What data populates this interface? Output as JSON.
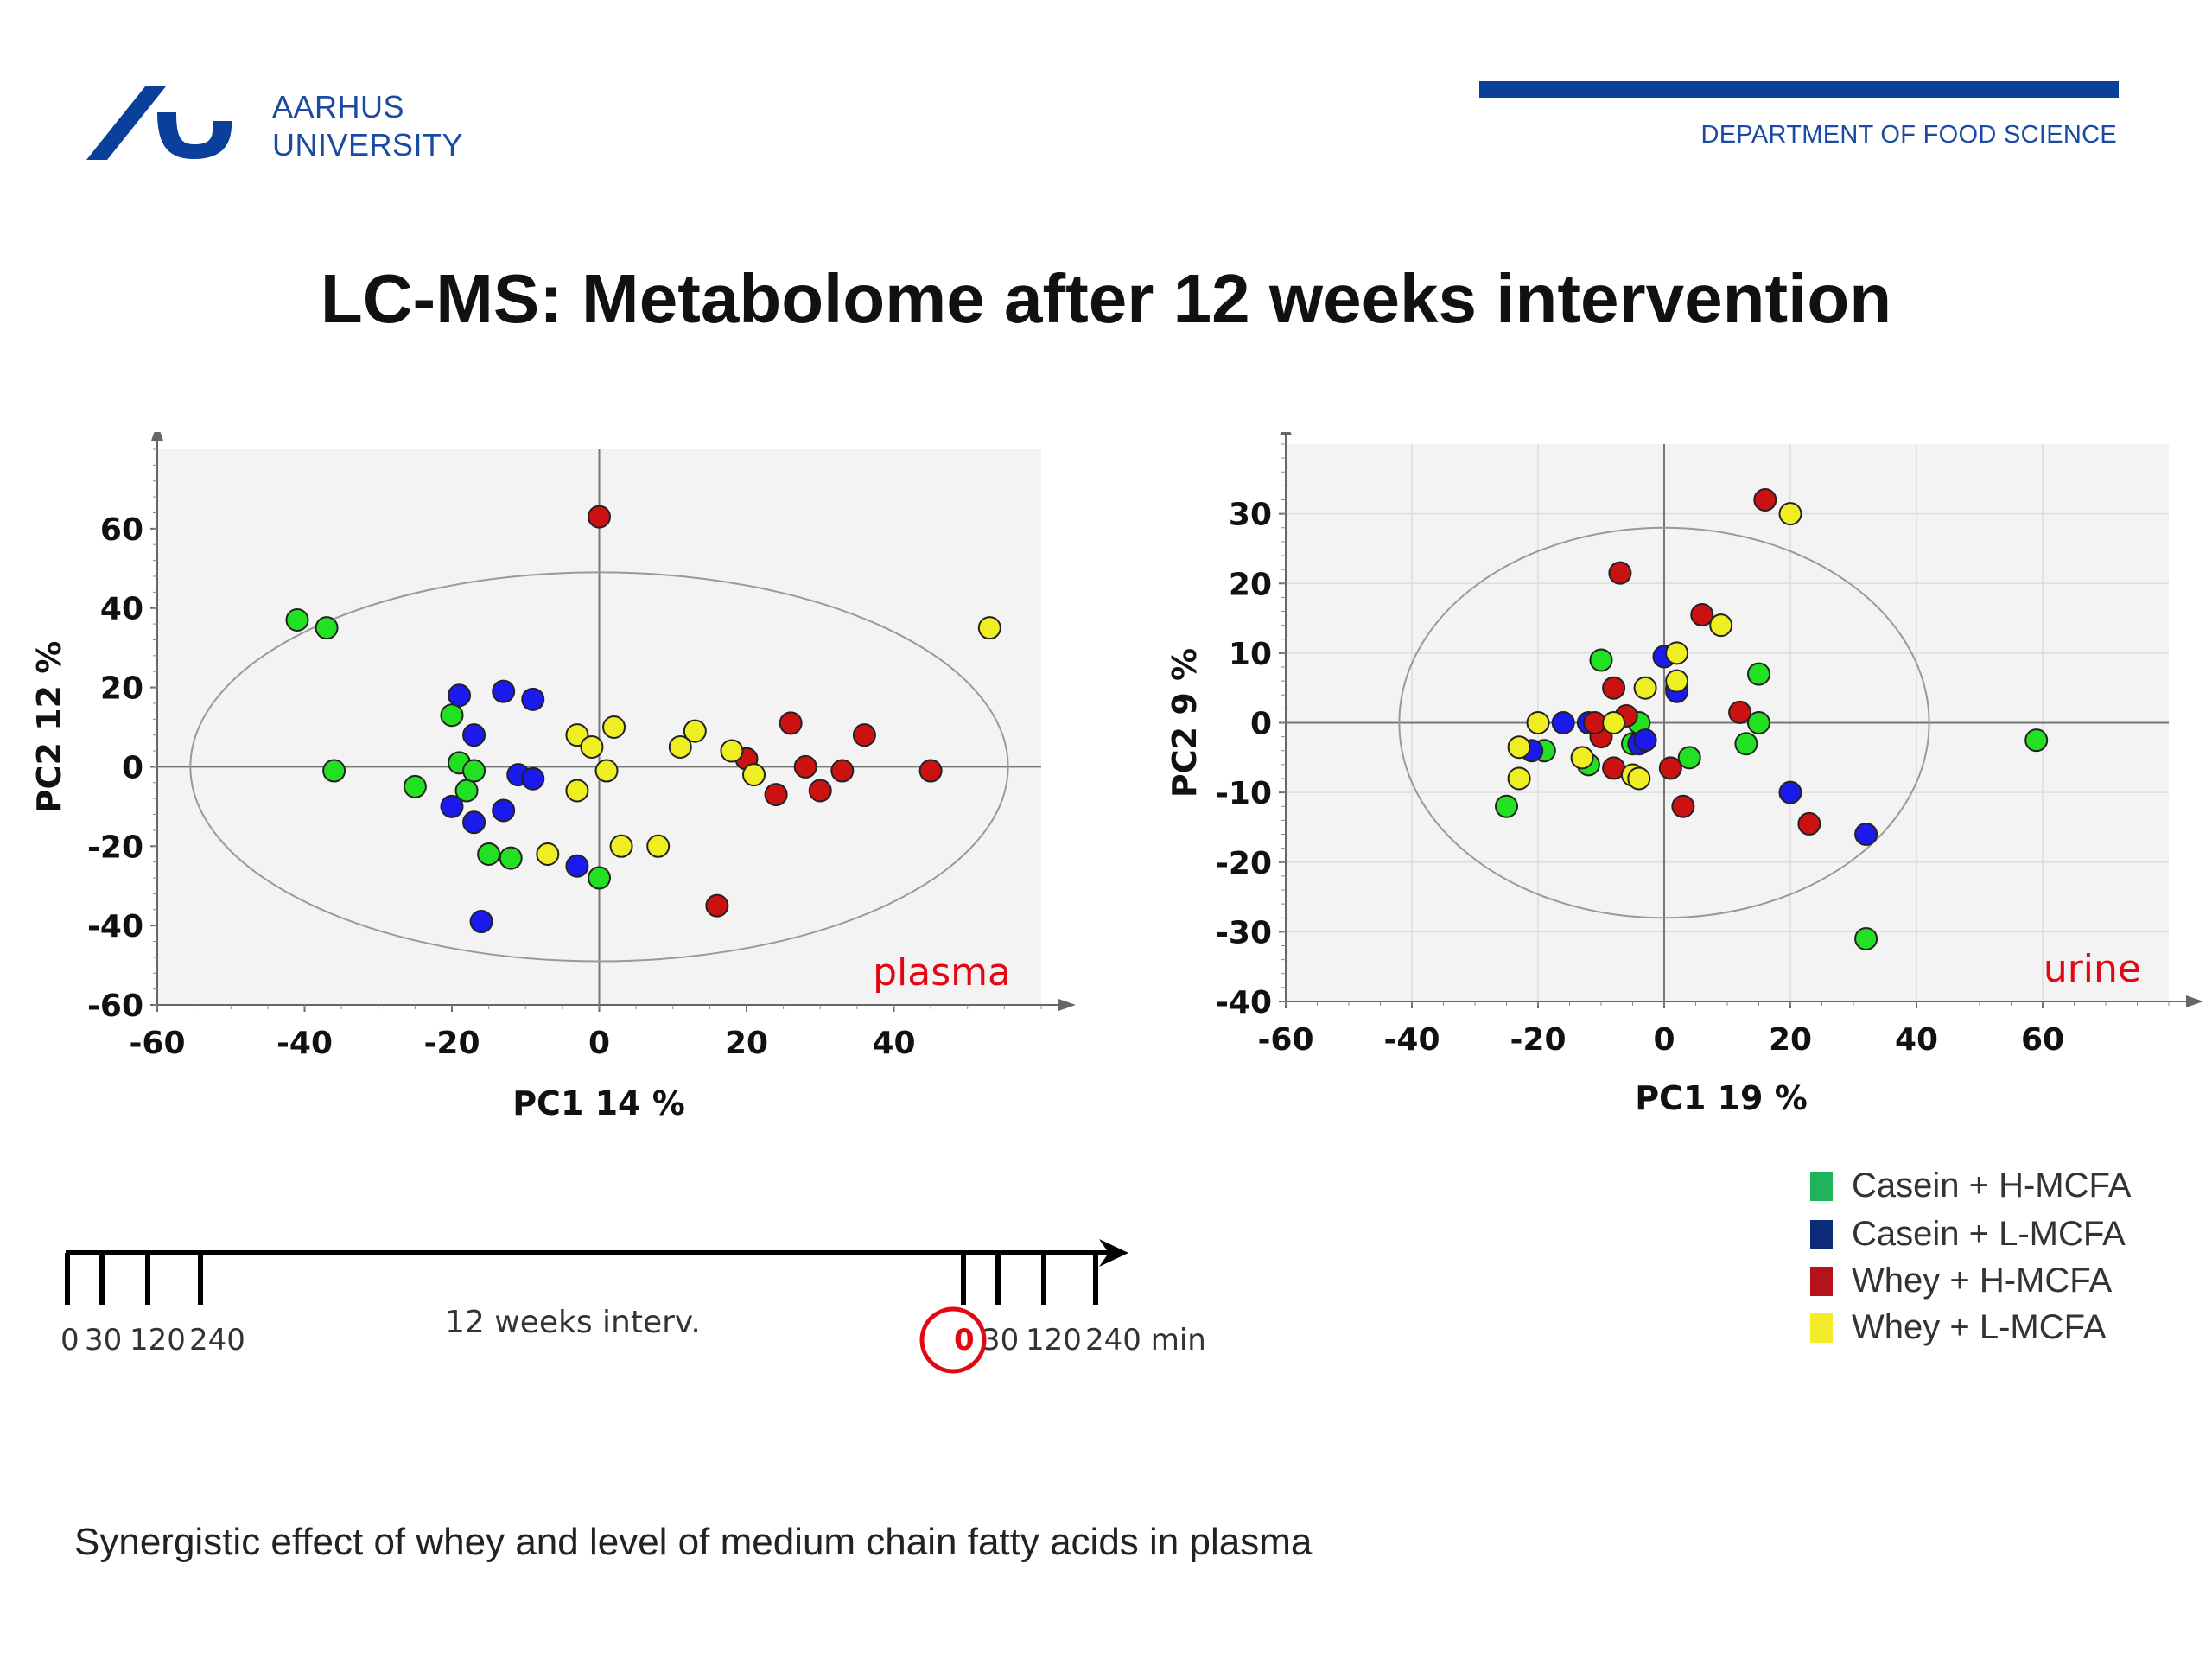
{
  "header": {
    "logo_line1": "AARHUS",
    "logo_line2": "UNIVERSITY",
    "department": "DEPARTMENT OF FOOD SCIENCE",
    "brand_color": "#0b3f9c"
  },
  "slide_title": "LC-MS: Metabolome after 12 weeks intervention",
  "caption": "Synergistic effect of whey and level of medium chain fatty acids in plasma",
  "legend": [
    {
      "label": "Casein + H-MCFA",
      "color": "#1fb45b"
    },
    {
      "label": "Casein + L-MCFA",
      "color": "#0b2a78"
    },
    {
      "label": "Whey + H-MCFA",
      "color": "#b5121b"
    },
    {
      "label": "Whey + L-MCFA",
      "color": "#f2ec2a"
    }
  ],
  "timeline": {
    "ticks_left": [
      "0",
      "30",
      "120",
      "240"
    ],
    "ticks_right": [
      "0",
      "30",
      "120",
      "240 min"
    ],
    "middle_label": "12 weeks interv.",
    "highlight_color": "#e30613"
  },
  "chart_data": [
    {
      "type": "scatter",
      "annotation": "plasma",
      "xlabel": "PC1 14 %",
      "ylabel": "PC2 12 %",
      "xlim": [
        -60,
        60
      ],
      "ylim": [
        -60,
        80
      ],
      "xticks": [
        -60,
        -40,
        -20,
        0,
        20,
        40
      ],
      "yticks": [
        -60,
        -40,
        -20,
        0,
        20,
        40,
        60
      ],
      "grid": false,
      "ellipse": {
        "cx": 0,
        "cy": 0,
        "rx": 55.5,
        "ry": 49
      },
      "series": [
        {
          "name": "Casein + H-MCFA",
          "color": "#22e022",
          "points": [
            [
              -41,
              37
            ],
            [
              -37,
              35
            ],
            [
              -36,
              -1
            ],
            [
              -25,
              -5
            ],
            [
              -20,
              13
            ],
            [
              -19,
              1
            ],
            [
              -18,
              -6
            ],
            [
              -17,
              -1
            ],
            [
              -15,
              -22
            ],
            [
              -12,
              -23
            ],
            [
              0,
              -28
            ]
          ]
        },
        {
          "name": "Casein + L-MCFA",
          "color": "#1a1aee",
          "points": [
            [
              -19,
              18
            ],
            [
              -17,
              8
            ],
            [
              -13,
              19
            ],
            [
              -9,
              17
            ],
            [
              -20,
              -10
            ],
            [
              -17,
              -14
            ],
            [
              -13,
              -11
            ],
            [
              -11,
              -2
            ],
            [
              -9,
              -3
            ],
            [
              -16,
              -39
            ],
            [
              -3,
              -25
            ]
          ]
        },
        {
          "name": "Whey + H-MCFA",
          "color": "#cc1111",
          "points": [
            [
              0,
              63
            ],
            [
              26,
              11
            ],
            [
              36,
              8
            ],
            [
              20,
              2
            ],
            [
              28,
              0
            ],
            [
              33,
              -1
            ],
            [
              45,
              -1
            ],
            [
              24,
              -7
            ],
            [
              30,
              -6
            ],
            [
              16,
              -35
            ]
          ]
        },
        {
          "name": "Whey + L-MCFA",
          "color": "#eeee22",
          "points": [
            [
              53,
              35
            ],
            [
              -3,
              8
            ],
            [
              2,
              10
            ],
            [
              -1,
              5
            ],
            [
              13,
              9
            ],
            [
              11,
              5
            ],
            [
              18,
              4
            ],
            [
              21,
              -2
            ],
            [
              1,
              -1
            ],
            [
              -3,
              -6
            ],
            [
              3,
              -20
            ],
            [
              8,
              -20
            ],
            [
              -7,
              -22
            ]
          ]
        }
      ]
    },
    {
      "type": "scatter",
      "annotation": "urine",
      "xlabel": "PC1 19 %",
      "ylabel": "PC2 9 %",
      "xlim": [
        -60,
        80
      ],
      "ylim": [
        -40,
        40
      ],
      "xticks": [
        -60,
        -40,
        -20,
        0,
        20,
        40,
        60
      ],
      "yticks": [
        -40,
        -30,
        -20,
        -10,
        0,
        10,
        20,
        30
      ],
      "grid": true,
      "ellipse": {
        "cx": 0,
        "cy": 0,
        "rx": 42,
        "ry": 28
      },
      "series": [
        {
          "name": "Casein + H-MCFA",
          "color": "#22e022",
          "points": [
            [
              -25,
              -12
            ],
            [
              -19,
              -4
            ],
            [
              -12,
              -6
            ],
            [
              -10,
              9
            ],
            [
              -5,
              -3
            ],
            [
              -4,
              0
            ],
            [
              4,
              -5
            ],
            [
              13,
              -3
            ],
            [
              15,
              7
            ],
            [
              15,
              0
            ],
            [
              59,
              -2.5
            ],
            [
              32,
              -31
            ]
          ]
        },
        {
          "name": "Casein + L-MCFA",
          "color": "#1a1aee",
          "points": [
            [
              -21,
              -4
            ],
            [
              -16,
              0
            ],
            [
              -12,
              0
            ],
            [
              -4,
              -3
            ],
            [
              -3,
              -2.5
            ],
            [
              0,
              9.5
            ],
            [
              2,
              5
            ],
            [
              2,
              4.5
            ],
            [
              20,
              -10
            ],
            [
              32,
              -16
            ]
          ]
        },
        {
          "name": "Whey + H-MCFA",
          "color": "#cc1111",
          "points": [
            [
              16,
              32
            ],
            [
              -7,
              21.5
            ],
            [
              6,
              15.5
            ],
            [
              -8,
              5
            ],
            [
              -6,
              1
            ],
            [
              12,
              1.5
            ],
            [
              -10,
              -2
            ],
            [
              -8,
              -6.5
            ],
            [
              1,
              -6.5
            ],
            [
              3,
              -12
            ],
            [
              23,
              -14.5
            ],
            [
              -11,
              0
            ]
          ]
        },
        {
          "name": "Whey + L-MCFA",
          "color": "#eeee22",
          "points": [
            [
              20,
              30
            ],
            [
              9,
              14
            ],
            [
              2,
              10
            ],
            [
              2,
              6
            ],
            [
              -3,
              5
            ],
            [
              -20,
              0
            ],
            [
              -8,
              0
            ],
            [
              -23,
              -3.5
            ],
            [
              -13,
              -5
            ],
            [
              -5,
              -7.5
            ],
            [
              -4,
              -8
            ],
            [
              -23,
              -8
            ]
          ]
        }
      ]
    }
  ]
}
